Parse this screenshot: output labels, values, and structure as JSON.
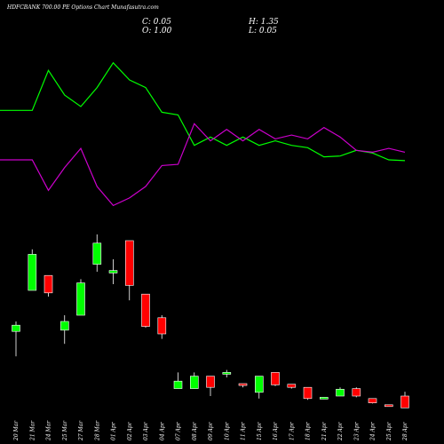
{
  "header": {
    "title": "HDFCBANK 700.00 PE Options Chart Munafasutra.com",
    "close": "C: 0.05",
    "open": "O: 1.00",
    "high": "H: 1.35",
    "low": "L: 0.05"
  },
  "colors": {
    "background": "#000000",
    "up": "#00ff00",
    "down": "#ff0000",
    "line_green": "#00ff00",
    "line_magenta": "#cc00cc",
    "text": "#ffffff"
  },
  "chart_data": [
    {
      "type": "line",
      "series": [
        {
          "color": "#00ff00",
          "values": [
            1.5,
            1.5,
            2.55,
            1.9,
            1.6,
            2.1,
            2.75,
            2.3,
            2.1,
            1.45,
            1.38,
            0.58,
            0.8,
            0.58,
            0.8,
            0.58,
            0.7,
            0.58,
            0.52,
            0.28,
            0.3,
            0.45,
            0.38,
            0.2,
            0.18
          ]
        },
        {
          "color": "#cc00cc",
          "values": [
            0.2,
            0.2,
            -0.6,
            0.0,
            0.5,
            -0.5,
            -1.0,
            -0.8,
            -0.5,
            0.05,
            0.08,
            1.15,
            0.7,
            1.0,
            0.7,
            1.0,
            0.75,
            0.85,
            0.75,
            1.05,
            0.8,
            0.45,
            0.4,
            0.5,
            0.4
          ]
        }
      ]
    },
    {
      "type": "candlestick",
      "categories": [
        "20 Mar",
        "21 Mar",
        "24 Mar",
        "25 Mar",
        "27 Mar",
        "28 Mar",
        "01 Apr",
        "02 Apr",
        "03 Apr",
        "04 Apr",
        "07 Apr",
        "08 Apr",
        "09 Apr",
        "10 Apr",
        "11 Apr",
        "15 Apr",
        "16 Apr",
        "17 Apr",
        "18 Apr",
        "21 Apr",
        "22 Apr",
        "23 Apr",
        "24 Apr",
        "25 Apr",
        "28 Apr"
      ],
      "candles": [
        {
          "o": 6.2,
          "h": 7.0,
          "l": 4.2,
          "c": 6.7
        },
        {
          "o": 9.5,
          "h": 12.8,
          "l": 9.5,
          "c": 12.4
        },
        {
          "o": 10.7,
          "h": 10.7,
          "l": 9.0,
          "c": 9.3
        },
        {
          "o": 6.3,
          "h": 7.5,
          "l": 5.2,
          "c": 7.0
        },
        {
          "o": 7.5,
          "h": 10.4,
          "l": 7.5,
          "c": 10.1
        },
        {
          "o": 11.6,
          "h": 14.0,
          "l": 11.0,
          "c": 13.3
        },
        {
          "o": 10.9,
          "h": 12.0,
          "l": 10.0,
          "c": 11.1
        },
        {
          "o": 13.5,
          "h": 13.5,
          "l": 8.7,
          "c": 9.9
        },
        {
          "o": 9.2,
          "h": 9.2,
          "l": 6.5,
          "c": 6.6
        },
        {
          "o": 7.3,
          "h": 7.5,
          "l": 5.6,
          "c": 6.0
        },
        {
          "o": 1.6,
          "h": 2.9,
          "l": 1.6,
          "c": 2.2
        },
        {
          "o": 1.6,
          "h": 2.9,
          "l": 1.6,
          "c": 2.6
        },
        {
          "o": 2.6,
          "h": 2.6,
          "l": 1.0,
          "c": 1.7
        },
        {
          "o": 2.8,
          "h": 3.1,
          "l": 2.5,
          "c": 2.9
        },
        {
          "o": 2.0,
          "h": 2.0,
          "l": 1.7,
          "c": 1.85
        },
        {
          "o": 1.3,
          "h": 2.6,
          "l": 0.8,
          "c": 2.6
        },
        {
          "o": 2.9,
          "h": 2.9,
          "l": 1.8,
          "c": 1.9
        },
        {
          "o": 1.95,
          "h": 1.95,
          "l": 1.6,
          "c": 1.7
        },
        {
          "o": 1.7,
          "h": 1.7,
          "l": 0.7,
          "c": 0.8
        },
        {
          "o": 0.8,
          "h": 0.9,
          "l": 0.75,
          "c": 0.9
        },
        {
          "o": 1.0,
          "h": 1.7,
          "l": 1.0,
          "c": 1.55
        },
        {
          "o": 1.6,
          "h": 1.7,
          "l": 0.9,
          "c": 1.0
        },
        {
          "o": 0.8,
          "h": 0.8,
          "l": 0.4,
          "c": 0.45
        },
        {
          "o": 0.3,
          "h": 0.3,
          "l": 0.2,
          "c": 0.2
        },
        {
          "o": 1.0,
          "h": 1.35,
          "l": 0.05,
          "c": 0.05
        }
      ]
    }
  ]
}
